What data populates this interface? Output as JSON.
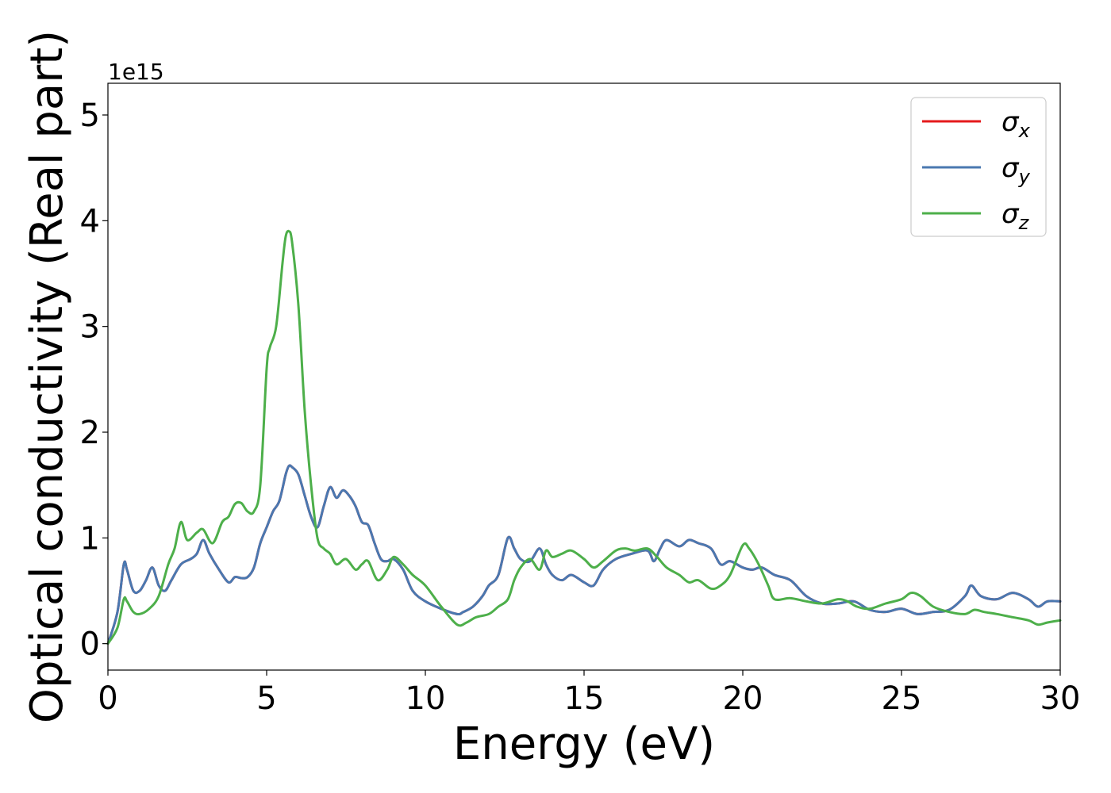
{
  "chart_data": {
    "type": "line",
    "xlabel": "Energy (eV)",
    "ylabel": "Optical conductivity (Real part)",
    "y_offset_label": "1e15",
    "xlim": [
      0,
      30
    ],
    "ylim": [
      -0.25,
      5.3
    ],
    "x_ticks": [
      0,
      5,
      10,
      15,
      20,
      25,
      30
    ],
    "y_ticks": [
      0,
      1,
      2,
      3,
      4,
      5
    ],
    "grid": false,
    "legend_position": "top-right",
    "series": [
      {
        "symbol": "σ",
        "subscript": "x",
        "color": "#e41a1c",
        "x": [
          0,
          0.3,
          0.5,
          0.6,
          0.8,
          1.0,
          1.2,
          1.4,
          1.6,
          1.8,
          2.0,
          2.3,
          2.6,
          2.8,
          3.0,
          3.2,
          3.5,
          3.8,
          4.0,
          4.2,
          4.4,
          4.6,
          4.8,
          5.0,
          5.2,
          5.4,
          5.6,
          5.7,
          5.8,
          6.0,
          6.2,
          6.4,
          6.6,
          6.8,
          7.0,
          7.2,
          7.4,
          7.6,
          7.8,
          8.0,
          8.2,
          8.4,
          8.6,
          8.8,
          9.0,
          9.3,
          9.6,
          10.0,
          10.5,
          11.0,
          11.2,
          11.5,
          11.8,
          12.0,
          12.3,
          12.6,
          12.8,
          13.0,
          13.3,
          13.6,
          13.8,
          14.0,
          14.3,
          14.6,
          15.0,
          15.3,
          15.6,
          16.0,
          16.5,
          17.0,
          17.2,
          17.4,
          17.6,
          18.0,
          18.3,
          18.6,
          19.0,
          19.3,
          19.6,
          20.0,
          20.3,
          20.6,
          21.0,
          21.5,
          22.0,
          22.5,
          23.0,
          23.5,
          24.0,
          24.5,
          25.0,
          25.5,
          26.0,
          26.5,
          27.0,
          27.2,
          27.5,
          28.0,
          28.5,
          29.0,
          29.3,
          29.6,
          30.0
        ],
        "values": [
          0,
          0.3,
          0.75,
          0.7,
          0.5,
          0.5,
          0.6,
          0.72,
          0.55,
          0.5,
          0.6,
          0.75,
          0.8,
          0.85,
          0.98,
          0.85,
          0.7,
          0.58,
          0.63,
          0.62,
          0.63,
          0.72,
          0.95,
          1.1,
          1.25,
          1.35,
          1.6,
          1.68,
          1.67,
          1.6,
          1.4,
          1.2,
          1.1,
          1.3,
          1.48,
          1.38,
          1.45,
          1.4,
          1.3,
          1.15,
          1.12,
          0.95,
          0.8,
          0.78,
          0.8,
          0.7,
          0.5,
          0.4,
          0.33,
          0.28,
          0.3,
          0.35,
          0.45,
          0.55,
          0.65,
          1.0,
          0.9,
          0.8,
          0.78,
          0.9,
          0.75,
          0.65,
          0.6,
          0.65,
          0.58,
          0.55,
          0.7,
          0.8,
          0.85,
          0.88,
          0.78,
          0.9,
          0.98,
          0.92,
          0.98,
          0.95,
          0.9,
          0.75,
          0.78,
          0.72,
          0.7,
          0.72,
          0.65,
          0.6,
          0.45,
          0.38,
          0.38,
          0.4,
          0.32,
          0.3,
          0.33,
          0.28,
          0.3,
          0.32,
          0.45,
          0.55,
          0.45,
          0.42,
          0.48,
          0.42,
          0.35,
          0.4,
          0.4
        ]
      },
      {
        "symbol": "σ",
        "subscript": "y",
        "color": "#4a78b0",
        "x": [
          0,
          0.3,
          0.5,
          0.6,
          0.8,
          1.0,
          1.2,
          1.4,
          1.6,
          1.8,
          2.0,
          2.3,
          2.6,
          2.8,
          3.0,
          3.2,
          3.5,
          3.8,
          4.0,
          4.2,
          4.4,
          4.6,
          4.8,
          5.0,
          5.2,
          5.4,
          5.6,
          5.7,
          5.8,
          6.0,
          6.2,
          6.4,
          6.6,
          6.8,
          7.0,
          7.2,
          7.4,
          7.6,
          7.8,
          8.0,
          8.2,
          8.4,
          8.6,
          8.8,
          9.0,
          9.3,
          9.6,
          10.0,
          10.5,
          11.0,
          11.2,
          11.5,
          11.8,
          12.0,
          12.3,
          12.6,
          12.8,
          13.0,
          13.3,
          13.6,
          13.8,
          14.0,
          14.3,
          14.6,
          15.0,
          15.3,
          15.6,
          16.0,
          16.5,
          17.0,
          17.2,
          17.4,
          17.6,
          18.0,
          18.3,
          18.6,
          19.0,
          19.3,
          19.6,
          20.0,
          20.3,
          20.6,
          21.0,
          21.5,
          22.0,
          22.5,
          23.0,
          23.5,
          24.0,
          24.5,
          25.0,
          25.5,
          26.0,
          26.5,
          27.0,
          27.2,
          27.5,
          28.0,
          28.5,
          29.0,
          29.3,
          29.6,
          30.0
        ],
        "values": [
          0,
          0.3,
          0.75,
          0.7,
          0.5,
          0.5,
          0.6,
          0.72,
          0.55,
          0.5,
          0.6,
          0.75,
          0.8,
          0.85,
          0.98,
          0.85,
          0.7,
          0.58,
          0.63,
          0.62,
          0.63,
          0.72,
          0.95,
          1.1,
          1.25,
          1.35,
          1.6,
          1.68,
          1.67,
          1.6,
          1.4,
          1.2,
          1.1,
          1.3,
          1.48,
          1.38,
          1.45,
          1.4,
          1.3,
          1.15,
          1.12,
          0.95,
          0.8,
          0.78,
          0.8,
          0.7,
          0.5,
          0.4,
          0.33,
          0.28,
          0.3,
          0.35,
          0.45,
          0.55,
          0.65,
          1.0,
          0.9,
          0.8,
          0.78,
          0.9,
          0.75,
          0.65,
          0.6,
          0.65,
          0.58,
          0.55,
          0.7,
          0.8,
          0.85,
          0.88,
          0.78,
          0.9,
          0.98,
          0.92,
          0.98,
          0.95,
          0.9,
          0.75,
          0.78,
          0.72,
          0.7,
          0.72,
          0.65,
          0.6,
          0.45,
          0.38,
          0.38,
          0.4,
          0.32,
          0.3,
          0.33,
          0.28,
          0.3,
          0.32,
          0.45,
          0.55,
          0.45,
          0.42,
          0.48,
          0.42,
          0.35,
          0.4,
          0.4
        ]
      },
      {
        "symbol": "σ",
        "subscript": "z",
        "color": "#4daf4a",
        "x": [
          0,
          0.3,
          0.5,
          0.6,
          0.8,
          1.0,
          1.3,
          1.6,
          1.9,
          2.1,
          2.3,
          2.5,
          2.8,
          3.0,
          3.3,
          3.6,
          3.8,
          4.0,
          4.2,
          4.4,
          4.6,
          4.8,
          5.0,
          5.1,
          5.3,
          5.5,
          5.6,
          5.7,
          5.8,
          6.0,
          6.2,
          6.4,
          6.6,
          6.8,
          7.0,
          7.2,
          7.5,
          7.8,
          8.0,
          8.2,
          8.5,
          8.8,
          9.0,
          9.3,
          9.6,
          10.0,
          10.5,
          11.0,
          11.3,
          11.6,
          12.0,
          12.3,
          12.6,
          12.8,
          13.0,
          13.3,
          13.6,
          13.8,
          14.0,
          14.3,
          14.6,
          15.0,
          15.3,
          15.6,
          16.0,
          16.3,
          16.6,
          17.0,
          17.3,
          17.6,
          18.0,
          18.3,
          18.6,
          19.0,
          19.3,
          19.6,
          20.0,
          20.2,
          20.5,
          20.8,
          21.0,
          21.5,
          22.0,
          22.5,
          23.0,
          23.3,
          23.6,
          24.0,
          24.5,
          25.0,
          25.3,
          25.6,
          26.0,
          26.5,
          27.0,
          27.3,
          27.6,
          28.0,
          28.5,
          29.0,
          29.3,
          29.6,
          30.0
        ],
        "values": [
          0,
          0.15,
          0.42,
          0.4,
          0.3,
          0.28,
          0.33,
          0.45,
          0.75,
          0.9,
          1.15,
          0.98,
          1.05,
          1.08,
          0.95,
          1.15,
          1.2,
          1.32,
          1.33,
          1.25,
          1.25,
          1.5,
          2.6,
          2.8,
          3.0,
          3.6,
          3.85,
          3.9,
          3.8,
          3.2,
          2.2,
          1.5,
          1.0,
          0.9,
          0.85,
          0.75,
          0.8,
          0.7,
          0.75,
          0.78,
          0.6,
          0.7,
          0.82,
          0.75,
          0.65,
          0.55,
          0.35,
          0.18,
          0.2,
          0.25,
          0.28,
          0.35,
          0.42,
          0.6,
          0.72,
          0.8,
          0.7,
          0.88,
          0.82,
          0.85,
          0.88,
          0.8,
          0.72,
          0.78,
          0.88,
          0.9,
          0.88,
          0.9,
          0.82,
          0.72,
          0.65,
          0.58,
          0.6,
          0.52,
          0.55,
          0.65,
          0.93,
          0.9,
          0.75,
          0.55,
          0.42,
          0.43,
          0.4,
          0.38,
          0.42,
          0.4,
          0.35,
          0.33,
          0.38,
          0.42,
          0.48,
          0.45,
          0.35,
          0.3,
          0.28,
          0.32,
          0.3,
          0.28,
          0.25,
          0.22,
          0.18,
          0.2,
          0.22
        ]
      }
    ]
  }
}
